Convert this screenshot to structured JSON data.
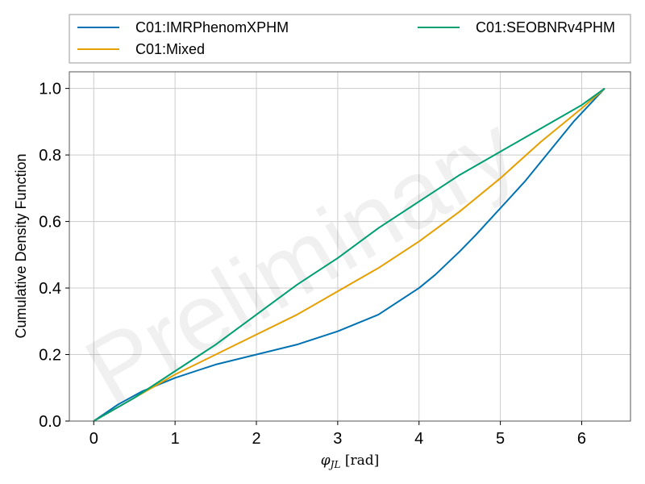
{
  "chart_data": {
    "type": "line",
    "watermark": "Preliminary",
    "xlabel": "φJL [rad]",
    "ylabel": "Cumulative Density Function",
    "xlim": [
      -0.3,
      6.6
    ],
    "ylim": [
      0.0,
      1.05
    ],
    "xticks": [
      0,
      1,
      2,
      3,
      4,
      5,
      6
    ],
    "xtick_labels": [
      "0",
      "1",
      "2",
      "3",
      "4",
      "5",
      "6"
    ],
    "yticks": [
      0.0,
      0.2,
      0.4,
      0.6,
      0.8,
      1.0
    ],
    "ytick_labels": [
      "0.0",
      "0.2",
      "0.4",
      "0.6",
      "0.8",
      "1.0"
    ],
    "grid": true,
    "legend_position": "top, above plot, two columns",
    "series": [
      {
        "name": "C01:IMRPhenomXPHM",
        "color": "#0072b2",
        "x": [
          0,
          0.3,
          0.6,
          1.0,
          1.5,
          2.0,
          2.5,
          3.0,
          3.5,
          4.0,
          4.2,
          4.5,
          4.7,
          5.0,
          5.3,
          5.6,
          5.9,
          6.283
        ],
        "y": [
          0,
          0.05,
          0.09,
          0.13,
          0.17,
          0.2,
          0.23,
          0.27,
          0.32,
          0.4,
          0.44,
          0.51,
          0.56,
          0.64,
          0.72,
          0.81,
          0.9,
          1.0
        ]
      },
      {
        "name": "C01:Mixed",
        "color": "#e69f00",
        "x": [
          0,
          0.5,
          1.0,
          1.5,
          2.0,
          2.5,
          3.0,
          3.5,
          4.0,
          4.5,
          5.0,
          5.5,
          6.0,
          6.283
        ],
        "y": [
          0,
          0.07,
          0.14,
          0.2,
          0.26,
          0.32,
          0.39,
          0.46,
          0.54,
          0.63,
          0.73,
          0.84,
          0.94,
          1.0
        ]
      },
      {
        "name": "C01:SEOBNRv4PHM",
        "color": "#009e73",
        "x": [
          0,
          0.5,
          1.0,
          1.5,
          2.0,
          2.5,
          3.0,
          3.5,
          4.0,
          4.5,
          5.0,
          5.5,
          6.0,
          6.283
        ],
        "y": [
          0,
          0.07,
          0.15,
          0.23,
          0.32,
          0.41,
          0.49,
          0.58,
          0.66,
          0.74,
          0.81,
          0.88,
          0.95,
          1.0
        ]
      }
    ]
  }
}
